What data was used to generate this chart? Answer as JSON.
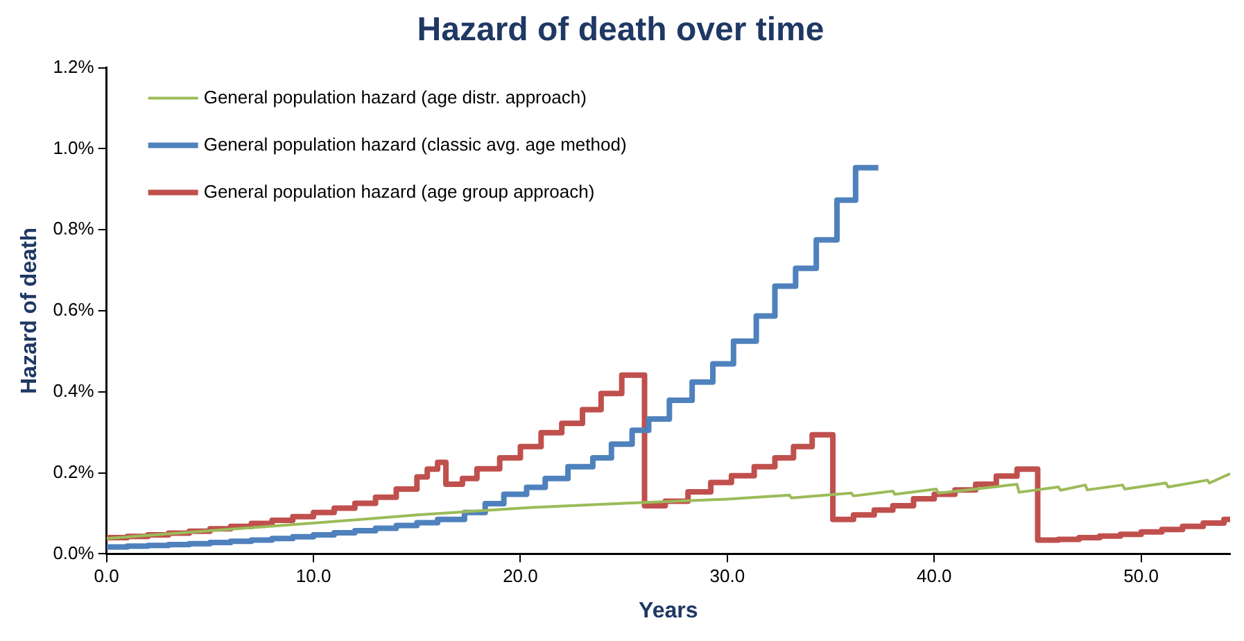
{
  "chart_data": {
    "type": "step",
    "title": "Hazard of death over time",
    "xlabel": "Years",
    "ylabel": "Hazard of death",
    "xlim": [
      0,
      54.3
    ],
    "xticks": [
      {
        "value": 0,
        "label": "0.0"
      },
      {
        "value": 10,
        "label": "10.0"
      },
      {
        "value": 20,
        "label": "20.0"
      },
      {
        "value": 30,
        "label": "30.0"
      },
      {
        "value": 40,
        "label": "40.0"
      },
      {
        "value": 50,
        "label": "50.0"
      }
    ],
    "ylim": [
      0,
      1.2
    ],
    "yticks": [
      {
        "value": 0,
        "label": "0.0%"
      },
      {
        "value": 0.2,
        "label": "0.2%"
      },
      {
        "value": 0.4,
        "label": "0.4%"
      },
      {
        "value": 0.6,
        "label": "0.6%"
      },
      {
        "value": 0.8,
        "label": "0.8%"
      },
      {
        "value": 1,
        "label": "1.0%"
      },
      {
        "value": 1.2,
        "label": "1.2%"
      }
    ],
    "grid": false,
    "legend": "top left",
    "series": [
      {
        "name": "General population hazard (age distr. approach)",
        "type": "line",
        "color": "#9bbb59",
        "x": [
          0,
          5,
          10,
          15,
          20,
          25,
          30,
          33,
          33.1,
          36,
          36.1,
          38,
          38.1,
          40.1,
          40.2,
          42,
          44,
          44.1,
          46,
          46.1,
          47.3,
          47.4,
          49.1,
          49.2,
          51.2,
          51.3,
          53.2,
          53.3,
          54.3
        ],
        "values": [
          0.038,
          0.057,
          0.076,
          0.096,
          0.113,
          0.125,
          0.135,
          0.145,
          0.138,
          0.15,
          0.143,
          0.155,
          0.147,
          0.16,
          0.15,
          0.16,
          0.172,
          0.152,
          0.165,
          0.157,
          0.17,
          0.158,
          0.17,
          0.16,
          0.175,
          0.165,
          0.182,
          0.175,
          0.198
        ]
      },
      {
        "name": "General population hazard (classic avg. age method)",
        "color": "#4f81bd",
        "x": [
          0,
          1,
          2,
          3,
          4,
          5,
          6,
          7,
          8,
          9,
          10,
          11,
          12,
          13,
          14,
          15,
          16,
          17.3,
          18.3,
          19.2,
          20.3,
          21.2,
          22.3,
          23.5,
          24.4,
          25.4,
          26.2,
          27.2,
          28.3,
          29.3,
          30.3,
          31.4,
          32.3,
          33.3,
          34.3,
          35.3,
          36.2,
          37.3
        ],
        "values": [
          0.017,
          0.019,
          0.021,
          0.023,
          0.025,
          0.028,
          0.031,
          0.034,
          0.038,
          0.042,
          0.047,
          0.052,
          0.057,
          0.063,
          0.07,
          0.077,
          0.085,
          0.102,
          0.124,
          0.147,
          0.164,
          0.186,
          0.215,
          0.237,
          0.271,
          0.305,
          0.333,
          0.379,
          0.424,
          0.469,
          0.525,
          0.587,
          0.661,
          0.705,
          0.775,
          0.873,
          0.953,
          0.953
        ]
      },
      {
        "name": "General population hazard (age group approach)",
        "color": "#c0504d",
        "x": [
          0,
          1,
          2,
          3,
          4,
          5,
          6,
          7,
          8,
          9,
          10,
          11,
          12,
          13,
          14,
          15,
          15.5,
          16,
          16.4,
          17.2,
          17.9,
          19,
          20,
          21,
          22,
          23,
          23.9,
          24.9,
          26,
          27,
          28.1,
          29.2,
          30.2,
          31.3,
          32.3,
          33.2,
          34.1,
          35.1,
          36.1,
          37.1,
          38,
          39,
          40,
          41,
          42,
          43,
          44,
          45,
          46,
          47,
          48,
          49,
          50,
          51,
          52,
          53,
          54,
          54.3
        ],
        "values": [
          0.04,
          0.043,
          0.047,
          0.051,
          0.056,
          0.062,
          0.068,
          0.075,
          0.083,
          0.092,
          0.102,
          0.113,
          0.125,
          0.14,
          0.16,
          0.19,
          0.209,
          0.226,
          0.172,
          0.186,
          0.21,
          0.237,
          0.265,
          0.299,
          0.322,
          0.356,
          0.396,
          0.441,
          0.119,
          0.13,
          0.153,
          0.176,
          0.193,
          0.215,
          0.237,
          0.265,
          0.294,
          0.085,
          0.096,
          0.108,
          0.119,
          0.136,
          0.147,
          0.158,
          0.172,
          0.192,
          0.209,
          0.034,
          0.036,
          0.04,
          0.044,
          0.048,
          0.054,
          0.06,
          0.068,
          0.076,
          0.085,
          0.091
        ]
      }
    ]
  }
}
